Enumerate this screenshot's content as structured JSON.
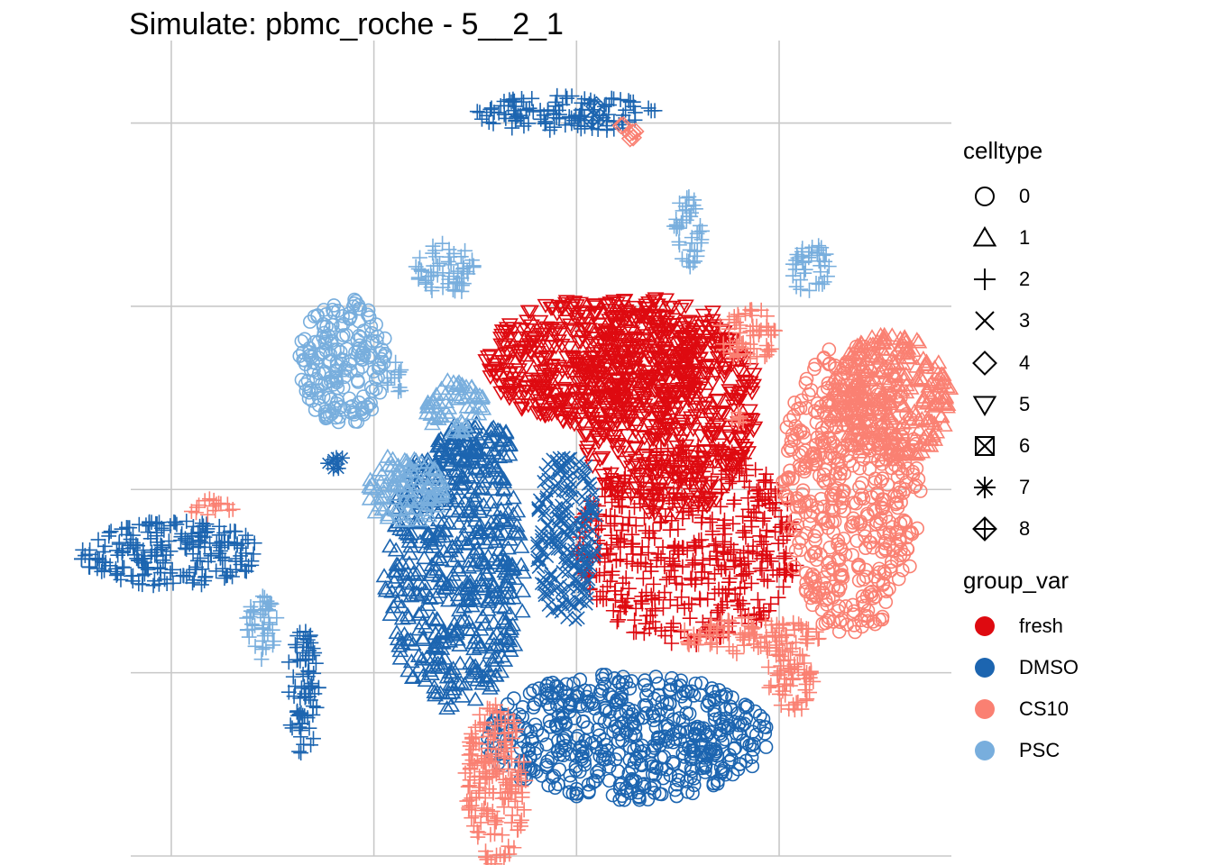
{
  "chart_data": {
    "type": "scatter",
    "title": "Simulate: pbmc_roche - 5__2_1",
    "xlabel": "",
    "ylabel": "",
    "grid": true,
    "axis_ticks_labeled": false,
    "legend_position": "right",
    "legends": [
      {
        "title": "celltype",
        "aesthetic": "shape",
        "entries": [
          {
            "label": "0",
            "shape": "circle-open"
          },
          {
            "label": "1",
            "shape": "triangle-open"
          },
          {
            "label": "2",
            "shape": "plus"
          },
          {
            "label": "3",
            "shape": "cross"
          },
          {
            "label": "4",
            "shape": "diamond-open"
          },
          {
            "label": "5",
            "shape": "triangle-down-open"
          },
          {
            "label": "6",
            "shape": "square-cross"
          },
          {
            "label": "7",
            "shape": "asterisk"
          },
          {
            "label": "8",
            "shape": "diamond-plus"
          }
        ]
      },
      {
        "title": "group_var",
        "aesthetic": "color",
        "entries": [
          {
            "label": "fresh",
            "color": "#DE0A10"
          },
          {
            "label": "DMSO",
            "color": "#1C65B0"
          },
          {
            "label": "CS10",
            "color": "#FA8072"
          },
          {
            "label": "PSC",
            "color": "#78AEDD"
          }
        ]
      }
    ],
    "clusters": [
      {
        "group": "fresh",
        "celltype": "5",
        "x": 0.1,
        "y": 0.7,
        "rx": 0.55,
        "ry": 0.35
      },
      {
        "group": "fresh",
        "celltype": "5",
        "x": 0.45,
        "y": 0.45,
        "rx": 0.45,
        "ry": 0.6
      },
      {
        "group": "fresh",
        "celltype": "2",
        "x": 0.55,
        "y": -0.3,
        "rx": 0.55,
        "ry": 0.55
      },
      {
        "group": "DMSO",
        "celltype": "2",
        "x": -2.0,
        "y": -0.35,
        "rx": 0.45,
        "ry": 0.18
      },
      {
        "group": "DMSO",
        "celltype": "1",
        "x": -0.6,
        "y": -0.45,
        "rx": 0.35,
        "ry": 0.75
      },
      {
        "group": "DMSO",
        "celltype": "3",
        "x": -0.05,
        "y": -0.25,
        "rx": 0.15,
        "ry": 0.5
      },
      {
        "group": "DMSO",
        "celltype": "0",
        "x": 0.25,
        "y": -1.35,
        "rx": 0.7,
        "ry": 0.35
      },
      {
        "group": "DMSO",
        "celltype": "2",
        "x": -1.35,
        "y": -1.1,
        "rx": 0.08,
        "ry": 0.35
      },
      {
        "group": "DMSO",
        "celltype": "2",
        "x": -0.05,
        "y": 2.05,
        "rx": 0.45,
        "ry": 0.1
      },
      {
        "group": "DMSO",
        "celltype": "4",
        "x": 0.1,
        "y": 2.05,
        "rx": 0.05,
        "ry": 0.05
      },
      {
        "group": "DMSO",
        "celltype": "1",
        "x": -0.5,
        "y": 0.25,
        "rx": 0.2,
        "ry": 0.12
      },
      {
        "group": "DMSO",
        "celltype": "7",
        "x": -1.2,
        "y": 0.15,
        "rx": 0.05,
        "ry": 0.05
      },
      {
        "group": "CS10",
        "celltype": "0",
        "x": 1.35,
        "y": 0.0,
        "rx": 0.35,
        "ry": 0.8
      },
      {
        "group": "CS10",
        "celltype": "1",
        "x": 1.55,
        "y": 0.5,
        "rx": 0.3,
        "ry": 0.35
      },
      {
        "group": "CS10",
        "celltype": "2",
        "x": 0.85,
        "y": 0.85,
        "rx": 0.15,
        "ry": 0.15
      },
      {
        "group": "CS10",
        "celltype": "2",
        "x": 0.85,
        "y": -0.8,
        "rx": 0.35,
        "ry": 0.1
      },
      {
        "group": "CS10",
        "celltype": "2",
        "x": 1.05,
        "y": -1.05,
        "rx": 0.12,
        "ry": 0.18
      },
      {
        "group": "CS10",
        "celltype": "2",
        "x": -0.4,
        "y": -1.6,
        "rx": 0.15,
        "ry": 0.45
      },
      {
        "group": "CS10",
        "celltype": "2",
        "x": -1.8,
        "y": -0.1,
        "rx": 0.12,
        "ry": 0.05
      },
      {
        "group": "CS10",
        "celltype": "2",
        "x": 0.8,
        "y": 0.4,
        "rx": 0.05,
        "ry": 0.05
      },
      {
        "group": "CS10",
        "celltype": "4",
        "x": 0.25,
        "y": 1.95,
        "rx": 0.05,
        "ry": 0.05
      },
      {
        "group": "PSC",
        "celltype": "0",
        "x": -1.15,
        "y": 0.7,
        "rx": 0.22,
        "ry": 0.35
      },
      {
        "group": "PSC",
        "celltype": "2",
        "x": -0.65,
        "y": 1.2,
        "rx": 0.15,
        "ry": 0.15
      },
      {
        "group": "PSC",
        "celltype": "1",
        "x": -0.85,
        "y": 0.0,
        "rx": 0.2,
        "ry": 0.2
      },
      {
        "group": "PSC",
        "celltype": "1",
        "x": -0.6,
        "y": 0.45,
        "rx": 0.15,
        "ry": 0.15
      },
      {
        "group": "PSC",
        "celltype": "2",
        "x": 0.55,
        "y": 1.4,
        "rx": 0.08,
        "ry": 0.2
      },
      {
        "group": "PSC",
        "celltype": "2",
        "x": 1.15,
        "y": 1.2,
        "rx": 0.1,
        "ry": 0.15
      },
      {
        "group": "PSC",
        "celltype": "2",
        "x": -1.55,
        "y": -0.75,
        "rx": 0.08,
        "ry": 0.2
      },
      {
        "group": "PSC",
        "celltype": "2",
        "x": -0.9,
        "y": 0.6,
        "rx": 0.05,
        "ry": 0.1
      }
    ]
  }
}
